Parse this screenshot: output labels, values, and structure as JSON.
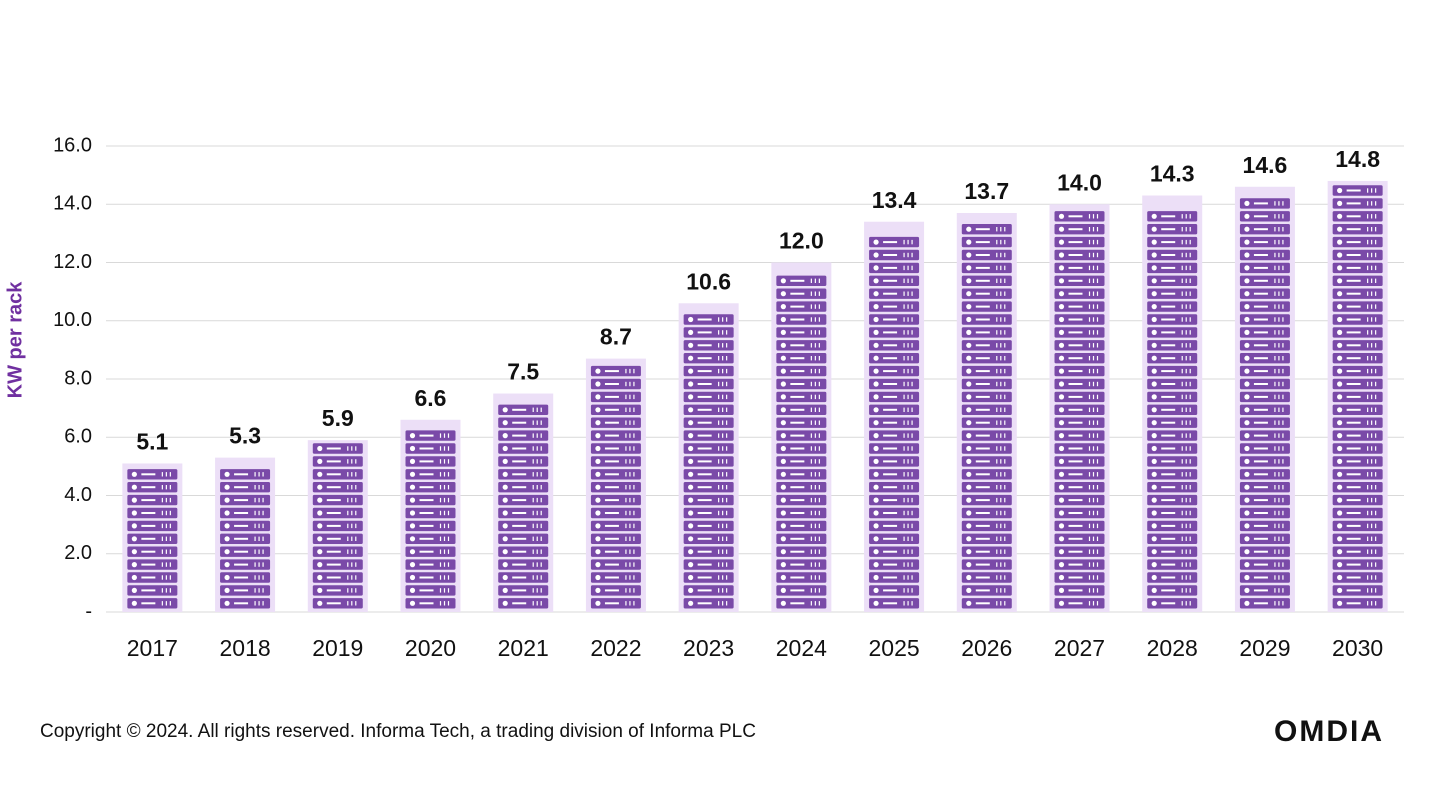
{
  "chart_data": {
    "type": "bar",
    "y_label": "KW per rack",
    "categories": [
      "2017",
      "2018",
      "2019",
      "2020",
      "2021",
      "2022",
      "2023",
      "2024",
      "2025",
      "2026",
      "2027",
      "2028",
      "2029",
      "2030"
    ],
    "values": [
      5.1,
      5.3,
      5.9,
      6.6,
      7.5,
      8.7,
      10.6,
      12.0,
      13.4,
      13.7,
      14.0,
      14.3,
      14.6,
      14.8
    ],
    "value_labels": [
      "5.1",
      "5.3",
      "5.9",
      "6.6",
      "7.5",
      "8.7",
      "10.6",
      "12.0",
      "13.4",
      "13.7",
      "14.0",
      "14.3",
      "14.6",
      "14.8"
    ],
    "color": "#7a4aa8",
    "ylim": [
      0,
      16
    ],
    "yticks": [
      {
        "value": 0,
        "label": "-"
      },
      {
        "value": 2,
        "label": "2.0"
      },
      {
        "value": 4,
        "label": "4.0"
      },
      {
        "value": 6,
        "label": "6.0"
      },
      {
        "value": 8,
        "label": "8.0"
      },
      {
        "value": 10,
        "label": "10.0"
      },
      {
        "value": 12,
        "label": "12.0"
      },
      {
        "value": 14,
        "label": "14.0"
      },
      {
        "value": 16,
        "label": "16.0"
      }
    ],
    "grid": true
  },
  "footer": {
    "copyright": "Copyright © 2024. All rights reserved. Informa Tech, a trading division of Informa PLC",
    "logo": "OMDIA"
  }
}
